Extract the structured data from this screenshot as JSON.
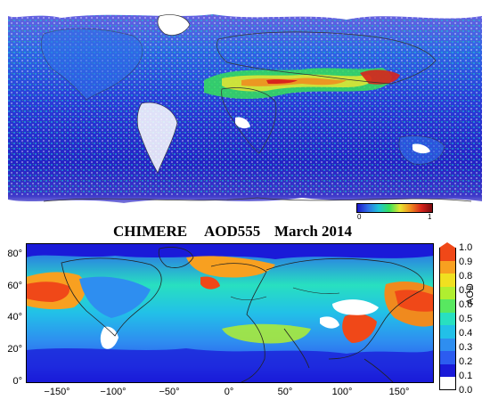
{
  "satellite_panel": {
    "colorbar_min_label": "0",
    "colorbar_max_label": "1",
    "colors": [
      "#1c16c8",
      "#2f6fe8",
      "#1fc4d8",
      "#36e05a",
      "#e8e632",
      "#f08a1e",
      "#d8241c",
      "#7a0a10"
    ]
  },
  "title": {
    "model": "CHIMERE",
    "variable": "AOD555",
    "period": "March 2014"
  },
  "model_panel": {
    "y_ticks": [
      "80°",
      "60°",
      "40°",
      "20°",
      "0°"
    ],
    "x_ticks": [
      "−150°",
      "−100°",
      "−50°",
      "0°",
      "50°",
      "100°",
      "150°"
    ],
    "colorbar_ticks": [
      "1.0",
      "0.9",
      "0.8",
      "0.7",
      "0.6",
      "0.5",
      "0.4",
      "0.3",
      "0.2",
      "0.1",
      "0.0"
    ],
    "colorbar_label": "AOD",
    "colors": [
      "#ffffff",
      "#1a1ad8",
      "#2c5cf0",
      "#2e8ef0",
      "#22c0e8",
      "#28e0c0",
      "#58e860",
      "#b0ee30",
      "#f0e020",
      "#f8a020",
      "#f04818"
    ]
  }
}
